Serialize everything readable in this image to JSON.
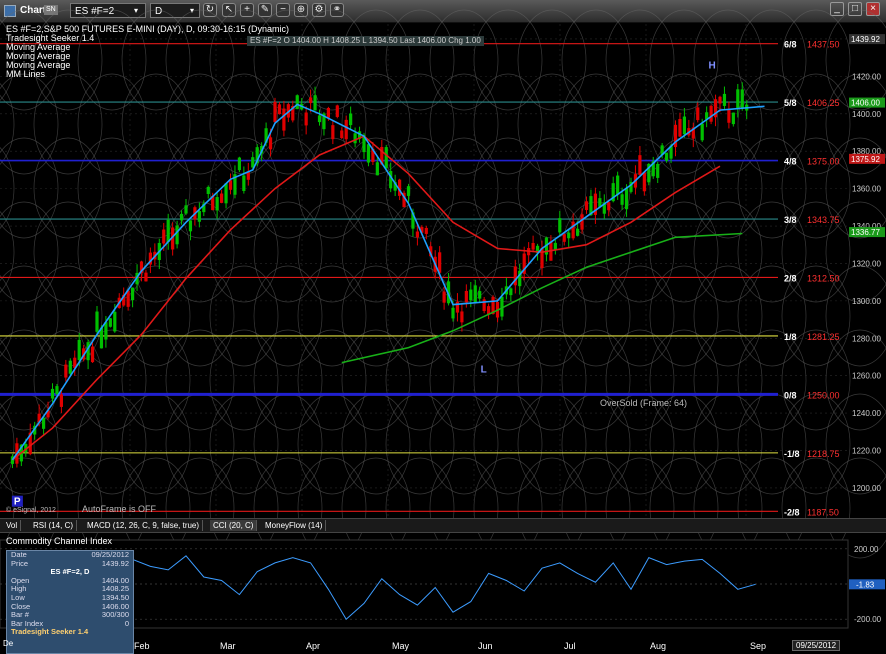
{
  "window": {
    "title": "Chart",
    "symbol": "ES #F=2",
    "interval": "D",
    "sn_label": "SN"
  },
  "info_box": "ES #F=2   O 1404.00   H 1408.25   L 1394.50   Last 1406.00   Chg 1.00",
  "legend": {
    "title": "ES #F=2,S&P 500 FUTURES E-MINI (DAY), D, 09:30-16:15 (Dynamic)",
    "items": [
      "Tradesight Seeker 1.4",
      "Moving Average",
      "Moving Average",
      "Moving Average",
      "MM Lines"
    ]
  },
  "colors": {
    "background": "#000000",
    "up_candle": "#00c000",
    "down_candle": "#e00000",
    "ma_fast": "#1ea0ff",
    "ma_mid": "#e01818",
    "ma_slow": "#18b018",
    "cci_line": "#3c9cff"
  },
  "chart_data": [
    {
      "type": "candlestick",
      "symbol": "ES #F=2",
      "title": "S&P 500 FUTURES E-MINI (DAY), D, 09:30-16:15 (Dynamic)",
      "x_labels": [
        "Feb",
        "Mar",
        "Apr",
        "May",
        "Jun",
        "Jul",
        "Aug",
        "Sep"
      ],
      "y_ticks": [
        1200,
        1220,
        1240,
        1260,
        1280,
        1300,
        1320,
        1340,
        1360,
        1380,
        1400,
        1420,
        1440
      ],
      "ylim": [
        1185,
        1448
      ],
      "last_price": 1406.0,
      "axis_tags": [
        {
          "label": "1439.92",
          "value": 1439.92
        },
        {
          "label": "1406.00",
          "value": 1406.0
        },
        {
          "label": "1375.92",
          "value": 1375.92
        },
        {
          "label": "1336.77",
          "value": 1336.77
        }
      ],
      "mm_lines": [
        {
          "label": "6/8",
          "value": 1437.5,
          "price_label": "1437.50",
          "color": "#e01818"
        },
        {
          "label": "5/8",
          "value": 1406.25,
          "price_label": "1406.25",
          "color": "#2a8a8a"
        },
        {
          "label": "4/8",
          "value": 1375.0,
          "price_label": "1375.00",
          "color": "#2020d0"
        },
        {
          "label": "3/8",
          "value": 1343.75,
          "price_label": "1343.75",
          "color": "#2a8a8a"
        },
        {
          "label": "2/8",
          "value": 1312.5,
          "price_label": "1312.50",
          "color": "#e01818"
        },
        {
          "label": "1/8",
          "value": 1281.25,
          "price_label": "1281.25",
          "color": "#e0e040"
        },
        {
          "label": "0/8",
          "value": 1250.0,
          "price_label": "1250.00",
          "color": "#2020d0"
        },
        {
          "label": "-1/8",
          "value": 1218.75,
          "price_label": "1218.75",
          "color": "#e0e040"
        },
        {
          "label": "-2/8",
          "value": 1187.5,
          "price_label": "1187.50",
          "color": "#e01818"
        }
      ],
      "pivot_points": [
        {
          "label": "P",
          "date": "2012-01-03",
          "value": 1198
        },
        {
          "label": "L",
          "date": "2012-06-04",
          "value": 1268
        },
        {
          "label": "H",
          "date": "2012-08-21",
          "value": 1422
        }
      ],
      "annotations": [
        "OverSold (Frame: 64)",
        "AutoFrame is OFF",
        "© eSignal, 2012"
      ],
      "moving_average_fast": [
        [
          1,
          1215
        ],
        [
          10,
          1245
        ],
        [
          20,
          1282
        ],
        [
          30,
          1316
        ],
        [
          40,
          1342
        ],
        [
          50,
          1365
        ],
        [
          55,
          1370
        ],
        [
          60,
          1395
        ],
        [
          65,
          1405
        ],
        [
          70,
          1400
        ],
        [
          80,
          1388
        ],
        [
          90,
          1352
        ],
        [
          100,
          1298
        ],
        [
          110,
          1300
        ],
        [
          120,
          1328
        ],
        [
          130,
          1345
        ],
        [
          140,
          1362
        ],
        [
          150,
          1385
        ],
        [
          160,
          1402
        ],
        [
          170,
          1404
        ]
      ],
      "moving_average_mid": [
        [
          1,
          1215
        ],
        [
          10,
          1232
        ],
        [
          20,
          1258
        ],
        [
          30,
          1282
        ],
        [
          40,
          1312
        ],
        [
          50,
          1338
        ],
        [
          60,
          1360
        ],
        [
          70,
          1378
        ],
        [
          80,
          1388
        ],
        [
          90,
          1368
        ],
        [
          100,
          1342
        ],
        [
          110,
          1328
        ],
        [
          120,
          1326
        ],
        [
          130,
          1330
        ],
        [
          140,
          1342
        ],
        [
          150,
          1358
        ],
        [
          160,
          1372
        ]
      ],
      "moving_average_slow": [
        [
          75,
          1267
        ],
        [
          90,
          1275
        ],
        [
          100,
          1284
        ],
        [
          110,
          1295
        ],
        [
          120,
          1307
        ],
        [
          130,
          1318
        ],
        [
          140,
          1326
        ],
        [
          150,
          1334
        ],
        [
          165,
          1336
        ]
      ]
    },
    {
      "type": "line",
      "title": "Commodity Channel Index",
      "y_ticks": [
        200,
        0,
        -200
      ],
      "ylim": [
        -250,
        250
      ],
      "last_value": -1.83,
      "x": [
        0,
        4,
        8,
        12,
        16,
        20,
        24,
        28,
        32,
        36,
        40,
        44,
        48,
        52,
        56,
        60,
        64,
        68,
        72,
        76,
        80,
        84,
        88,
        92,
        96,
        100,
        104,
        108,
        112,
        116,
        120,
        124,
        128,
        132,
        136,
        140,
        144,
        148,
        152,
        156,
        160,
        164,
        168
      ],
      "values": [
        -160,
        40,
        -70,
        120,
        30,
        90,
        70,
        140,
        100,
        80,
        160,
        40,
        20,
        -60,
        70,
        120,
        150,
        120,
        -30,
        -200,
        -110,
        30,
        -60,
        -120,
        -20,
        -160,
        -100,
        60,
        20,
        -40,
        90,
        120,
        60,
        10,
        120,
        -30,
        150,
        110,
        130,
        140,
        60,
        -30,
        -1.83
      ]
    }
  ],
  "data_window": {
    "date_label": "Date",
    "date_value": "09/25/2012",
    "price_label": "Price",
    "price_value": "1439.92",
    "symbol": "ES #F=2, D",
    "rows": [
      {
        "label": "Open",
        "value": "1404.00"
      },
      {
        "label": "High",
        "value": "1408.25"
      },
      {
        "label": "Low",
        "value": "1394.50"
      },
      {
        "label": "Close",
        "value": "1406.00"
      },
      {
        "label": "Bar #",
        "value": "300/300"
      },
      {
        "label": "Bar Index",
        "value": "0"
      }
    ],
    "footer": "Tradesight Seeker 1.4"
  },
  "bottom_tabs": [
    "Vol",
    "RSI (14, C)",
    "MACD (12, 26, C, 9, false, true)",
    "CCI (20, C)",
    "MoneyFlow (14)"
  ],
  "footer_date": "09/25/2012",
  "cci_current": "-1.83",
  "dec_label": "De"
}
